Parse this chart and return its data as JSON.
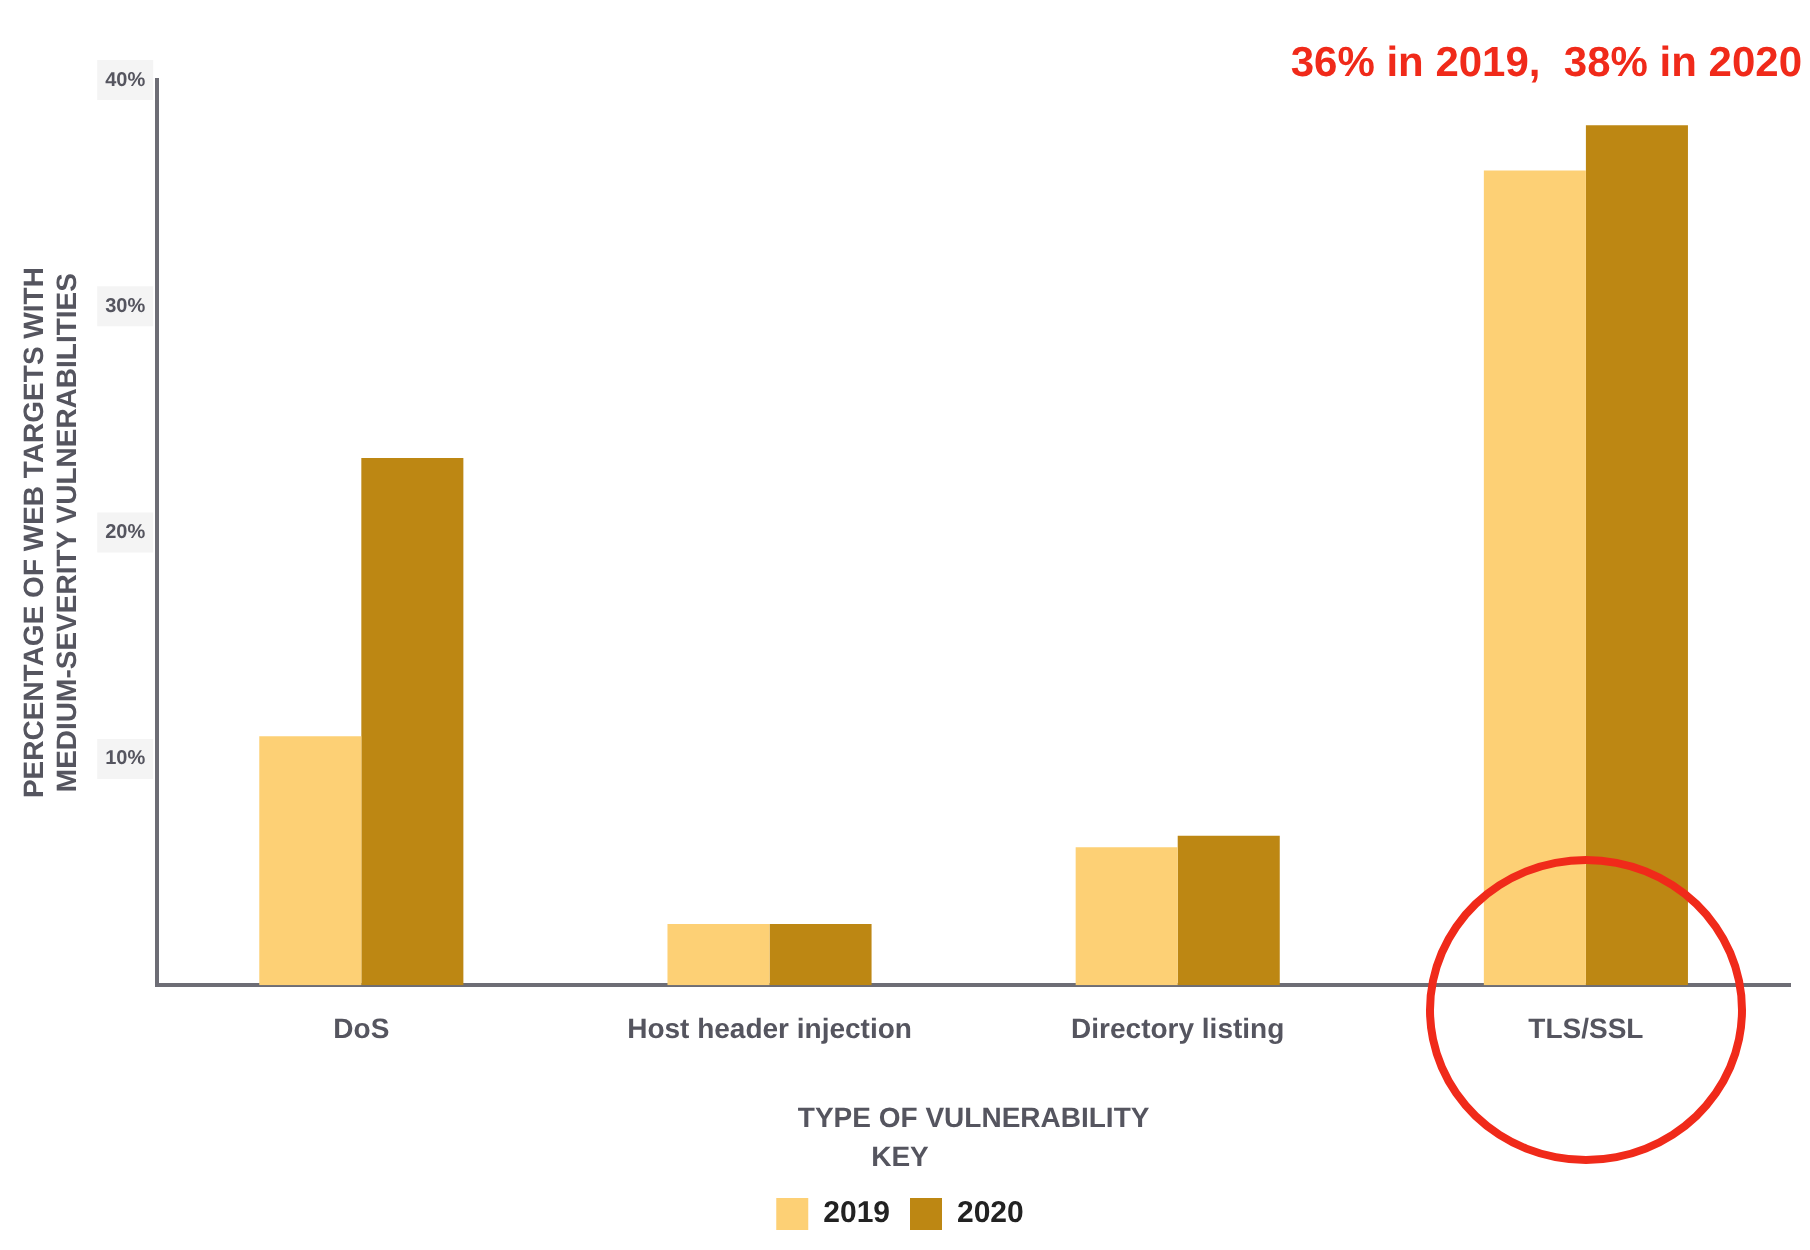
{
  "chart_data": {
    "type": "bar",
    "xlabel": "TYPE OF VULNERABILITY",
    "ylabel": "PERCENTAGE OF WEB TARGETS WITH\nMEDIUM-SEVERITY VULNERABILITIES",
    "categories": [
      "DoS",
      "Host header injection",
      "Directory listing",
      "TLS/SSL"
    ],
    "series": [
      {
        "name": "2019",
        "color": "#fdd075",
        "values": [
          11,
          2.7,
          6.1,
          36
        ]
      },
      {
        "name": "2020",
        "color": "#bd8713",
        "values": [
          23.3,
          2.7,
          6.6,
          38
        ]
      }
    ],
    "ylim": [
      0,
      40
    ],
    "yticks": [
      {
        "value": 10,
        "label": "10%"
      },
      {
        "value": 20,
        "label": "20%"
      },
      {
        "value": 30,
        "label": "30%"
      },
      {
        "value": 40,
        "label": "40%"
      }
    ],
    "grid": false,
    "legend": "bottom",
    "legend_title": "KEY",
    "annotations": [
      {
        "text": "36% in 2019,  38% in 2020",
        "x": "TLS/SSL",
        "y": 38
      }
    ]
  }
}
